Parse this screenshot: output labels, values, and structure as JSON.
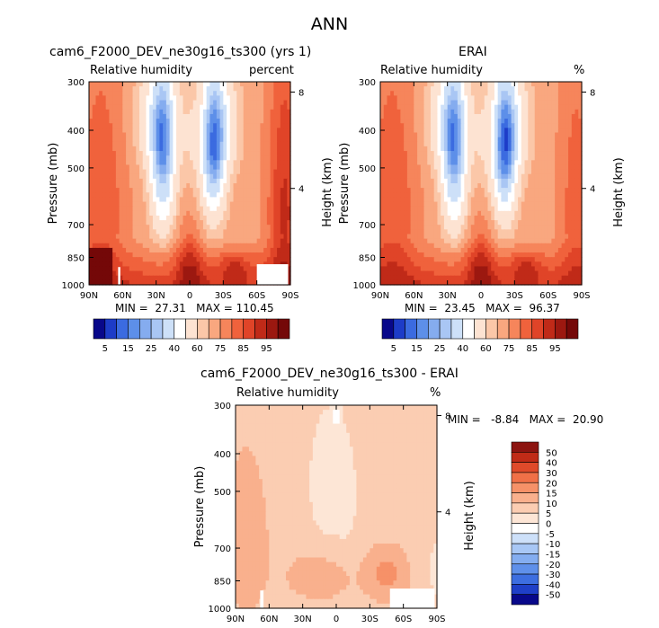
{
  "figure_title": "ANN",
  "colors": {
    "full_field_palette": [
      "#08088a",
      "#1d3cc8",
      "#3b6be0",
      "#5d8fe9",
      "#85acef",
      "#a9c6f4",
      "#cde0f8",
      "#ffffff",
      "#fde3d2",
      "#fbc7a8",
      "#f9a77f",
      "#f6855b",
      "#f0623c",
      "#e04428",
      "#c02a18",
      "#9c1810",
      "#740808"
    ],
    "diff_palette": [
      "#08088a",
      "#1f3fc7",
      "#3d6ee0",
      "#5f90ea",
      "#84adf0",
      "#a8c7f5",
      "#cde0f9",
      "#ffffff",
      "#fde6d6",
      "#fbcdb2",
      "#f9b08d",
      "#f69168",
      "#f07047",
      "#df4a2a",
      "#c02b17",
      "#8c1410"
    ],
    "missing": "#ffffff"
  },
  "panels": [
    {
      "title": "cam6_F2000_DEV_ne30g16_ts300 (yrs 1)",
      "left_label": "Relative humidity",
      "right_label": "percent",
      "min_max": "MIN =  27.31   MAX = 110.45"
    },
    {
      "title": "ERAI",
      "left_label": "Relative humidity",
      "right_label": "%",
      "min_max": "MIN =  23.45   MAX =  96.37"
    },
    {
      "title": "cam6_F2000_DEV_ne30g16_ts300 - ERAI",
      "left_label": "Relative humidity",
      "right_label": "%",
      "min_max": "MIN =   -8.84   MAX =  20.90"
    }
  ],
  "chart_data": [
    {
      "type": "heatmap",
      "title": "cam6_F2000_DEV_ne30g16_ts300 (yrs 1)",
      "subtitle": "Relative humidity",
      "units": "percent",
      "ylabel": "Pressure (mb)",
      "y2label": "Height (km)",
      "x_ticks": [
        "90N",
        "60N",
        "30N",
        "0",
        "30S",
        "60S",
        "90S"
      ],
      "x_values": [
        90,
        60,
        30,
        0,
        -30,
        -60,
        -90
      ],
      "y_ticks": [
        "300",
        "400",
        "500",
        "700",
        "850",
        "1000"
      ],
      "y_values": [
        300,
        400,
        500,
        700,
        850,
        1000
      ],
      "y_scale": "log",
      "ylim": [
        1000,
        300
      ],
      "y2_ticks": [
        "8",
        "4"
      ],
      "y2_values": [
        8,
        4
      ],
      "contour_levels": [
        5,
        10,
        15,
        20,
        25,
        30,
        40,
        50,
        60,
        65,
        70,
        75,
        80,
        85,
        90,
        95
      ],
      "colorbar_labels": [
        "5",
        "15",
        "25",
        "40",
        "60",
        "75",
        "85",
        "95"
      ],
      "min": 27.31,
      "max": 110.45
    },
    {
      "type": "heatmap",
      "title": "ERAI",
      "subtitle": "Relative humidity",
      "units": "%",
      "ylabel": "Pressure (mb)",
      "y2label": "Height (km)",
      "x_ticks": [
        "90N",
        "60N",
        "30N",
        "0",
        "30S",
        "60S",
        "90S"
      ],
      "x_values": [
        90,
        60,
        30,
        0,
        -30,
        -60,
        -90
      ],
      "y_ticks": [
        "300",
        "400",
        "500",
        "700",
        "850",
        "1000"
      ],
      "y_values": [
        300,
        400,
        500,
        700,
        850,
        1000
      ],
      "y_scale": "log",
      "ylim": [
        1000,
        300
      ],
      "y2_ticks": [
        "8",
        "4"
      ],
      "y2_values": [
        8,
        4
      ],
      "contour_levels": [
        5,
        10,
        15,
        20,
        25,
        30,
        40,
        50,
        60,
        65,
        70,
        75,
        80,
        85,
        90,
        95
      ],
      "colorbar_labels": [
        "5",
        "15",
        "25",
        "40",
        "60",
        "75",
        "85",
        "95"
      ],
      "min": 23.45,
      "max": 96.37
    },
    {
      "type": "heatmap",
      "title": "cam6_F2000_DEV_ne30g16_ts300 - ERAI",
      "subtitle": "Relative humidity",
      "units": "%",
      "ylabel": "Pressure (mb)",
      "y2label": "Height (km)",
      "x_ticks": [
        "90N",
        "60N",
        "30N",
        "0",
        "30S",
        "60S",
        "90S"
      ],
      "x_values": [
        90,
        60,
        30,
        0,
        -30,
        -60,
        -90
      ],
      "y_ticks": [
        "300",
        "400",
        "500",
        "700",
        "850",
        "1000"
      ],
      "y_values": [
        300,
        400,
        500,
        700,
        850,
        1000
      ],
      "y_scale": "log",
      "ylim": [
        1000,
        300
      ],
      "y2_ticks": [
        "8",
        "4"
      ],
      "y2_values": [
        8,
        4
      ],
      "contour_levels": [
        -50,
        -40,
        -30,
        -20,
        -15,
        -10,
        -5,
        0,
        5,
        10,
        15,
        20,
        30,
        40,
        50
      ],
      "colorbar_labels": [
        "50",
        "40",
        "30",
        "20",
        "15",
        "10",
        "5",
        "0",
        "-5",
        "-10",
        "-15",
        "-20",
        "-30",
        "-40",
        "-50"
      ],
      "min": -8.84,
      "max": 20.9
    }
  ]
}
